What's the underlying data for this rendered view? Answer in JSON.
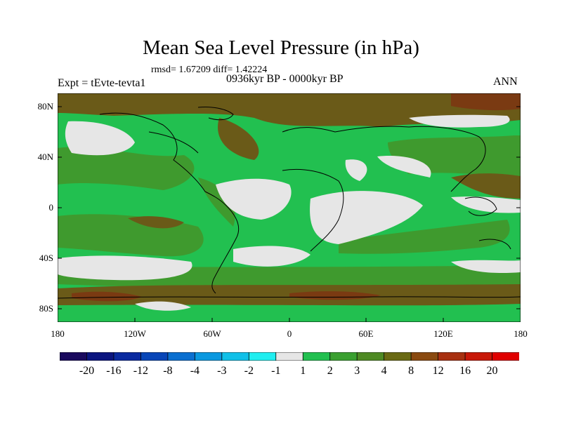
{
  "title": "Mean Sea Level Pressure (in hPa)",
  "stats": "rmsd= 1.67209  diff= 1.42224",
  "experiment": "Expt = tEvte-tevta1",
  "period": "0936kyr BP - 0000kyr BP",
  "season": "ANN",
  "lat_labels": [
    "80N",
    "40N",
    "0",
    "40S",
    "80S"
  ],
  "lon_labels": [
    "180",
    "120W",
    "60W",
    "0",
    "60E",
    "120E",
    "180"
  ],
  "colorbar": {
    "labels": [
      "-20",
      "-16",
      "-12",
      "-8",
      "-4",
      "-3",
      "-2",
      "-1",
      "1",
      "2",
      "3",
      "4",
      "8",
      "12",
      "16",
      "20"
    ],
    "colors": [
      "#1a0a5e",
      "#0b1580",
      "#0a2aa0",
      "#0846b8",
      "#0a6fd0",
      "#0a98e0",
      "#10c0e8",
      "#20eef0",
      "#e6e6e6",
      "#22c050",
      "#3aa030",
      "#4f8a24",
      "#6a6a14",
      "#8a4a10",
      "#a83010",
      "#c81808",
      "#e00000"
    ]
  },
  "colors": {
    "land_line": "#000000",
    "near_zero": "#e6e6e6",
    "pos_2": "#22c050",
    "pos_3": "#4f8a24",
    "pos_4": "#7a5a18"
  }
}
